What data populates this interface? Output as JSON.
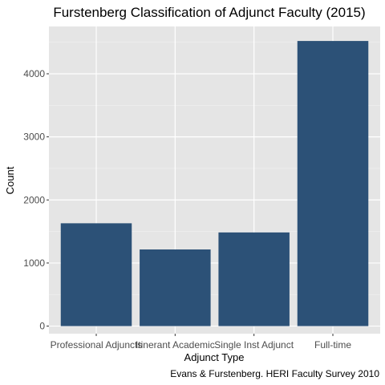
{
  "chart_data": {
    "type": "bar",
    "title": "Furstenberg Classification of Adjunct Faculty (2015)",
    "xlabel": "Adjunct Type",
    "ylabel": "Count",
    "caption": "Evans & Furstenberg. HERI Faculty Survey 2010",
    "categories": [
      "Professional Adjuncts",
      "Itinerant Academic",
      "Single Inst Adjunct",
      "Full-time"
    ],
    "values": [
      1630,
      1215,
      1485,
      4520
    ],
    "ylim": [
      -120,
      4750
    ],
    "yticks": [
      0,
      1000,
      2000,
      3000,
      4000
    ],
    "grid": true,
    "legend": "none",
    "colors": {
      "bar": "#2c5177",
      "panel": "#e5e5e5",
      "grid_major": "#ffffff",
      "grid_minor": "#f2f2f2"
    }
  }
}
